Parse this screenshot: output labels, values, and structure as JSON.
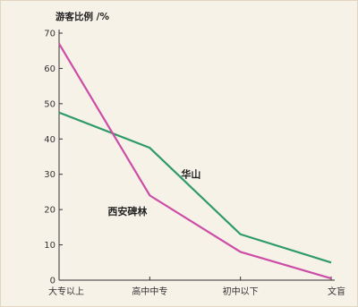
{
  "chart_data": {
    "type": "line",
    "title": "",
    "xlabel": "",
    "ylabel": "游客比例 /%",
    "categories": [
      "大专以上",
      "高中中专",
      "初中以下",
      "文盲"
    ],
    "ylim": [
      0,
      70
    ],
    "yticks": [
      0,
      10,
      20,
      30,
      40,
      50,
      60,
      70
    ],
    "grid": false,
    "series": [
      {
        "name": "华山",
        "color": "#2e9a6a",
        "values": [
          47.5,
          37.5,
          13,
          5
        ]
      },
      {
        "name": "西安碑林",
        "color": "#cc4ca6",
        "values": [
          67,
          24,
          8,
          0.5
        ]
      }
    ]
  }
}
